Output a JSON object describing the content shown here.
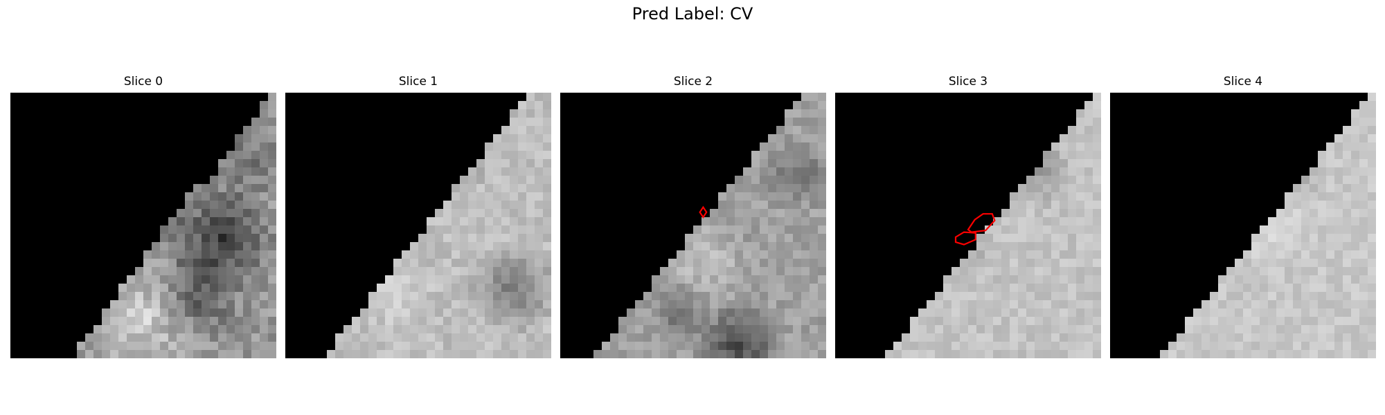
{
  "figure": {
    "title": "Pred Label: CV"
  },
  "panels": [
    {
      "title": "Slice 0",
      "roi_contours": 0,
      "shading": "darker, with dark mottled regions"
    },
    {
      "title": "Slice 1",
      "roi_contours": 0,
      "shading": "light gray, darker patch lower right"
    },
    {
      "title": "Slice 2",
      "roi_contours": 1,
      "shading": "mid gray with dark lower region"
    },
    {
      "title": "Slice 3",
      "roi_contours": 2,
      "shading": "light gray"
    },
    {
      "title": "Slice 4",
      "roi_contours": 0,
      "shading": "light gray"
    }
  ],
  "colors": {
    "background": "#000000",
    "contour": "#ff0000"
  }
}
